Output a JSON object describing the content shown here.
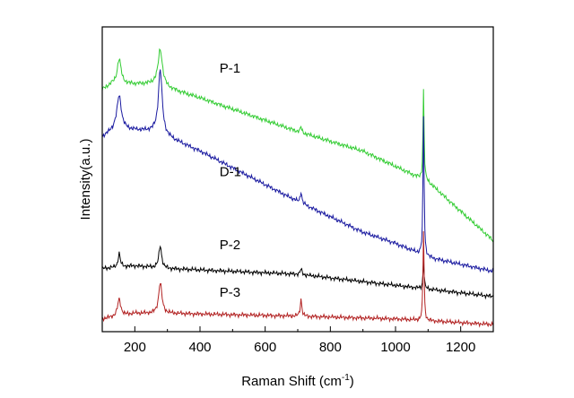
{
  "chart_data": {
    "type": "line",
    "title": "",
    "xlabel": "Raman Shift (cm",
    "xlabel_superscript": "-1",
    "xlabel_suffix": ")",
    "ylabel": "Intensity(a.u.)",
    "xlim": [
      100,
      1300
    ],
    "ylim": [
      0,
      100
    ],
    "x_ticks": [
      200,
      400,
      600,
      800,
      1000,
      1200
    ],
    "y_ticks_shown": false,
    "grid": false,
    "legend": "none",
    "series": [
      {
        "name": "P-1",
        "color": "#33cc33",
        "baseline": [
          [
            100,
            84
          ],
          [
            130,
            86
          ],
          [
            260,
            86
          ],
          [
            400,
            81
          ],
          [
            500,
            77
          ],
          [
            700,
            69
          ],
          [
            900,
            62
          ],
          [
            1100,
            51
          ],
          [
            1300,
            30
          ]
        ],
        "peaks": [
          [
            152,
            9,
            7
          ],
          [
            278,
            13,
            8
          ],
          [
            710,
            2,
            3
          ],
          [
            1086,
            32,
            2
          ]
        ]
      },
      {
        "name": "D-1",
        "color": "#1a1aa0",
        "baseline": [
          [
            100,
            67
          ],
          [
            140,
            70
          ],
          [
            260,
            69
          ],
          [
            400,
            62
          ],
          [
            500,
            56
          ],
          [
            700,
            44
          ],
          [
            900,
            33
          ],
          [
            1000,
            29
          ],
          [
            1100,
            24
          ],
          [
            1300,
            19
          ]
        ],
        "peaks": [
          [
            152,
            12,
            8
          ],
          [
            278,
            23,
            7
          ],
          [
            710,
            4,
            3
          ],
          [
            1086,
            50,
            2
          ]
        ]
      },
      {
        "name": "P-2",
        "color": "#000000",
        "baseline": [
          [
            100,
            20
          ],
          [
            200,
            21
          ],
          [
            300,
            20
          ],
          [
            700,
            18
          ],
          [
            1000,
            14
          ],
          [
            1300,
            10
          ]
        ],
        "peaks": [
          [
            152,
            5,
            4
          ],
          [
            278,
            8,
            5
          ],
          [
            710,
            2,
            3
          ],
          [
            1086,
            10,
            2
          ]
        ]
      },
      {
        "name": "P-3",
        "color": "#b22222",
        "baseline": [
          [
            100,
            2
          ],
          [
            200,
            4
          ],
          [
            300,
            4
          ],
          [
            700,
            3
          ],
          [
            1000,
            2
          ],
          [
            1300,
            0
          ]
        ],
        "peaks": [
          [
            152,
            6,
            6
          ],
          [
            278,
            11,
            6
          ],
          [
            710,
            6,
            3
          ],
          [
            1086,
            32,
            2
          ]
        ]
      }
    ],
    "annotations": [
      {
        "text": "P-1",
        "x": 460,
        "y": 90
      },
      {
        "text": "D-1",
        "x": 460,
        "y": 53
      },
      {
        "text": "P-2",
        "x": 460,
        "y": 27
      },
      {
        "text": "P-3",
        "x": 460,
        "y": 10
      }
    ]
  }
}
